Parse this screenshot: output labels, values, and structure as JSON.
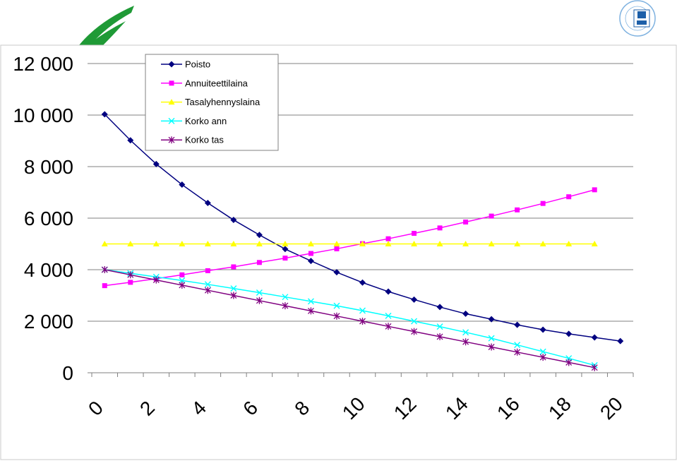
{
  "chart_data": {
    "type": "line",
    "title": "",
    "xlabel": "",
    "ylabel": "",
    "xlim": [
      0,
      21
    ],
    "ylim": [
      0,
      12000
    ],
    "x_ticks": [
      "0",
      "2",
      "4",
      "6",
      "8",
      "10",
      "12",
      "14",
      "16",
      "18",
      "20"
    ],
    "y_ticks": [
      "0",
      "2 000",
      "4 000",
      "6 000",
      "8 000",
      "10 000",
      "12 000"
    ],
    "legend_position": "top-left",
    "grid": "horizontal",
    "series": [
      {
        "name": "Poisto",
        "color": "#000080",
        "marker": "diamond",
        "x": [
          1,
          2,
          3,
          4,
          5,
          6,
          7,
          8,
          9,
          10,
          11,
          12,
          13,
          14,
          15,
          16,
          17,
          18,
          19,
          20,
          21
        ],
        "values": [
          10030,
          9020,
          8100,
          7300,
          6590,
          5930,
          5350,
          4800,
          4340,
          3900,
          3500,
          3150,
          2840,
          2550,
          2290,
          2080,
          1860,
          1670,
          1510,
          1370,
          1230
        ]
      },
      {
        "name": "Annuiteettilaina",
        "color": "#ff00ff",
        "marker": "square",
        "x": [
          1,
          2,
          3,
          4,
          5,
          6,
          7,
          8,
          9,
          10,
          11,
          12,
          13,
          14,
          15,
          16,
          17,
          18,
          19,
          20
        ],
        "values": [
          3380,
          3510,
          3650,
          3800,
          3960,
          4110,
          4280,
          4450,
          4630,
          4810,
          5010,
          5200,
          5410,
          5620,
          5850,
          6080,
          6320,
          6570,
          6830,
          7100
        ]
      },
      {
        "name": "Tasalyhennyslaina",
        "color": "#ffff00",
        "marker": "triangle",
        "x": [
          1,
          2,
          3,
          4,
          5,
          6,
          7,
          8,
          9,
          10,
          11,
          12,
          13,
          14,
          15,
          16,
          17,
          18,
          19,
          20
        ],
        "values": [
          5000,
          5000,
          5000,
          5000,
          5000,
          5000,
          5000,
          5000,
          5000,
          5000,
          5000,
          5000,
          5000,
          5000,
          5000,
          5000,
          5000,
          5000,
          5000,
          5000
        ]
      },
      {
        "name": "Korko ann",
        "color": "#00ffff",
        "marker": "x",
        "x": [
          1,
          2,
          3,
          4,
          5,
          6,
          7,
          8,
          9,
          10,
          11,
          12,
          13,
          14,
          15,
          16,
          17,
          18,
          19,
          20
        ],
        "values": [
          4000,
          3860,
          3720,
          3580,
          3430,
          3270,
          3110,
          2940,
          2770,
          2600,
          2410,
          2210,
          2000,
          1790,
          1570,
          1340,
          1080,
          820,
          560,
          290
        ]
      },
      {
        "name": "Korko tas",
        "color": "#800080",
        "marker": "star",
        "x": [
          1,
          2,
          3,
          4,
          5,
          6,
          7,
          8,
          9,
          10,
          11,
          12,
          13,
          14,
          15,
          16,
          17,
          18,
          19,
          20
        ],
        "values": [
          4000,
          3800,
          3600,
          3400,
          3200,
          3000,
          2800,
          2600,
          2400,
          2200,
          2000,
          1800,
          1600,
          1400,
          1200,
          1000,
          800,
          600,
          400,
          200
        ]
      }
    ]
  }
}
